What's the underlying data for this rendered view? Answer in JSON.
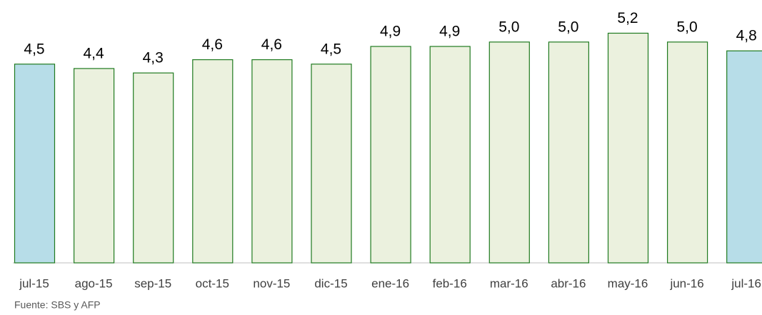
{
  "chart_data": {
    "type": "bar",
    "categories": [
      "jul-15",
      "ago-15",
      "sep-15",
      "oct-15",
      "nov-15",
      "dic-15",
      "ene-16",
      "feb-16",
      "mar-16",
      "abr-16",
      "may-16",
      "jun-16",
      "jul-16"
    ],
    "values": [
      4.5,
      4.4,
      4.3,
      4.6,
      4.6,
      4.5,
      4.9,
      4.9,
      5.0,
      5.0,
      5.2,
      5.0,
      4.8
    ],
    "value_labels": [
      "4,5",
      "4,4",
      "4,3",
      "4,6",
      "4,6",
      "4,5",
      "4,9",
      "4,9",
      "5,0",
      "5,0",
      "5,2",
      "5,0",
      "4,8"
    ],
    "colors": [
      "#b7dde8",
      "#ebf1de",
      "#ebf1de",
      "#ebf1de",
      "#ebf1de",
      "#ebf1de",
      "#ebf1de",
      "#ebf1de",
      "#ebf1de",
      "#ebf1de",
      "#ebf1de",
      "#ebf1de",
      "#b7dde8"
    ],
    "edgecolors": [
      "#1f7a1f",
      "#1f7a1f",
      "#1f7a1f",
      "#1f7a1f",
      "#1f7a1f",
      "#1f7a1f",
      "#1f7a1f",
      "#1f7a1f",
      "#1f7a1f",
      "#1f7a1f",
      "#1f7a1f",
      "#1f7a1f",
      "#1f7a1f"
    ],
    "ylim": [
      0,
      6
    ],
    "source": "Fuente: SBS y AFP"
  }
}
